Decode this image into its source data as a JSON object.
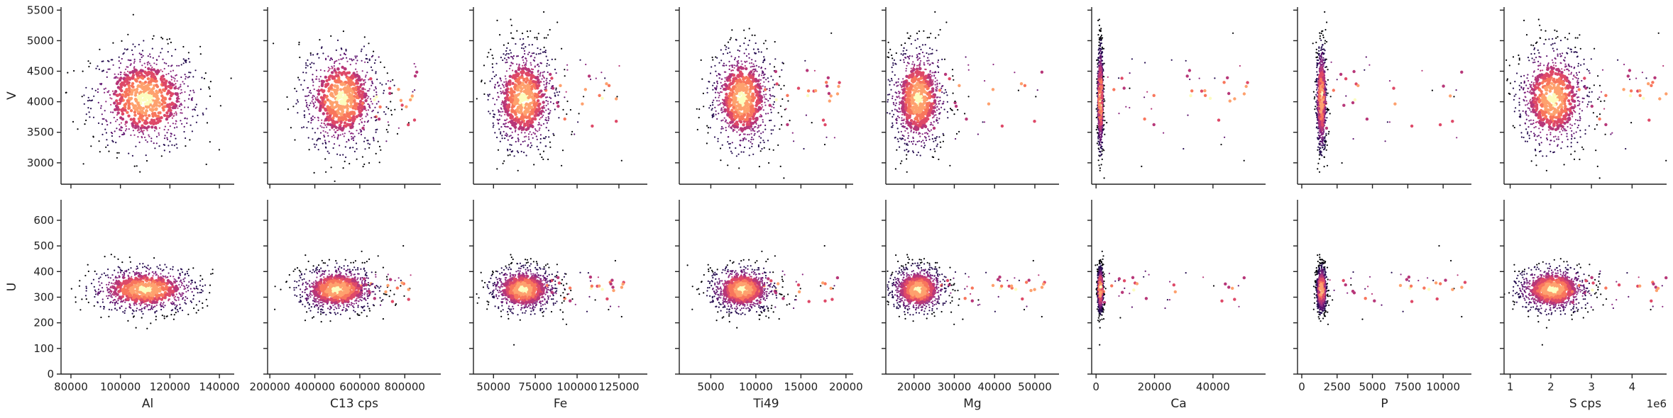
{
  "chart_data": {
    "type": "scatter",
    "grid": false,
    "colormap": [
      "#000004",
      "#240c4f",
      "#5c126e",
      "#8c2981",
      "#b73779",
      "#de4968",
      "#f8765c",
      "#fea16e",
      "#fcfdbf"
    ],
    "rows": [
      {
        "ylabel": "V",
        "ylim": [
          2650,
          5550
        ],
        "yticks": [
          3000,
          3500,
          4000,
          4500,
          5000,
          5500
        ],
        "yticklabels": [
          "3000",
          "3500",
          "4000",
          "4500",
          "5000",
          "5500"
        ]
      },
      {
        "ylabel": "U",
        "ylim": [
          0,
          680
        ],
        "yticks": [
          0,
          100,
          200,
          300,
          400,
          500,
          600
        ],
        "yticklabels": [
          "0",
          "100",
          "200",
          "300",
          "400",
          "500",
          "600"
        ]
      }
    ],
    "columns": [
      {
        "xlabel": "Al",
        "offset_label": "",
        "xlim": [
          76000,
          146000
        ],
        "xticks": [
          80000,
          100000,
          120000,
          140000
        ],
        "xticklabels": [
          "80000",
          "100000",
          "120000",
          "140000"
        ],
        "v_center": [
          110000,
          4050
        ],
        "v_spread": [
          11000,
          420
        ],
        "v_tail": [
          0,
          0
        ],
        "u_center": [
          110000,
          330
        ],
        "u_spread": [
          11000,
          45
        ],
        "u_tail": [
          0,
          0
        ]
      },
      {
        "xlabel": "C13 cps",
        "offset_label": "",
        "xlim": [
          190000,
          960000
        ],
        "xticks": [
          200000,
          400000,
          600000,
          800000
        ],
        "xticklabels": [
          "200000",
          "400000",
          "600000",
          "800000"
        ],
        "v_center": [
          520000,
          4050
        ],
        "v_spread": [
          90000,
          430
        ],
        "v_tail": [
          250000,
          0
        ],
        "u_center": [
          500000,
          330
        ],
        "u_spread": [
          90000,
          45
        ],
        "u_tail": [
          250000,
          0
        ]
      },
      {
        "xlabel": "Fe",
        "offset_label": "",
        "xlim": [
          38000,
          142000
        ],
        "xticks": [
          50000,
          75000,
          100000,
          125000
        ],
        "xticklabels": [
          "50000",
          "75000",
          "100000",
          "125000"
        ],
        "v_center": [
          68000,
          4050
        ],
        "v_spread": [
          10000,
          430
        ],
        "v_tail": [
          50000,
          0
        ],
        "u_center": [
          68000,
          330
        ],
        "u_spread": [
          10000,
          45
        ],
        "u_tail": [
          50000,
          0
        ]
      },
      {
        "xlabel": "Ti49",
        "offset_label": "",
        "xlim": [
          1500,
          20800
        ],
        "xticks": [
          5000,
          10000,
          15000,
          20000
        ],
        "xticklabels": [
          "5000",
          "10000",
          "15000",
          "20000"
        ],
        "v_center": [
          8500,
          4050
        ],
        "v_spread": [
          1800,
          430
        ],
        "v_tail": [
          9000,
          0
        ],
        "u_center": [
          8500,
          330
        ],
        "u_spread": [
          1800,
          45
        ],
        "u_tail": [
          9000,
          0
        ]
      },
      {
        "xlabel": "Mg",
        "offset_label": "",
        "xlim": [
          13000,
          56000
        ],
        "xticks": [
          20000,
          30000,
          40000,
          50000
        ],
        "xticklabels": [
          "20000",
          "30000",
          "40000",
          "50000"
        ],
        "v_center": [
          21000,
          4050
        ],
        "v_spread": [
          3500,
          430
        ],
        "v_tail": [
          28000,
          0
        ],
        "u_center": [
          21000,
          330
        ],
        "u_spread": [
          3500,
          45
        ],
        "u_tail": [
          28000,
          0
        ]
      },
      {
        "xlabel": "Ca",
        "offset_label": "",
        "xlim": [
          -1500,
          58000
        ],
        "xticks": [
          0,
          20000,
          40000
        ],
        "xticklabels": [
          "0",
          "20000",
          "40000"
        ],
        "v_center": [
          1500,
          4050
        ],
        "v_spread": [
          500,
          430
        ],
        "v_tail": [
          50000,
          0
        ],
        "u_center": [
          1500,
          330
        ],
        "u_spread": [
          500,
          45
        ],
        "u_tail": [
          50000,
          0
        ]
      },
      {
        "xlabel": "P",
        "offset_label": "",
        "xlim": [
          -300,
          12000
        ],
        "xticks": [
          0,
          2500,
          5000,
          7500,
          10000
        ],
        "xticklabels": [
          "0",
          "2500",
          "5000",
          "7500",
          "10000"
        ],
        "v_center": [
          1400,
          4050
        ],
        "v_spread": [
          180,
          430
        ],
        "v_tail": [
          10000,
          0
        ],
        "u_center": [
          1400,
          330
        ],
        "u_spread": [
          180,
          45
        ],
        "u_tail": [
          10000,
          0
        ]
      },
      {
        "xlabel": "S cps",
        "offset_label": "1e6",
        "xlim": [
          850000,
          4850000
        ],
        "xticks": [
          1000000,
          2000000,
          3000000,
          4000000
        ],
        "xticklabels": [
          "1",
          "2",
          "3",
          "4"
        ],
        "v_center": [
          2050000,
          4050
        ],
        "v_spread": [
          450000,
          430
        ],
        "v_tail": [
          2400000,
          0
        ],
        "u_center": [
          2050000,
          330
        ],
        "u_spread": [
          450000,
          45
        ],
        "u_tail": [
          2400000,
          0
        ]
      }
    ]
  }
}
